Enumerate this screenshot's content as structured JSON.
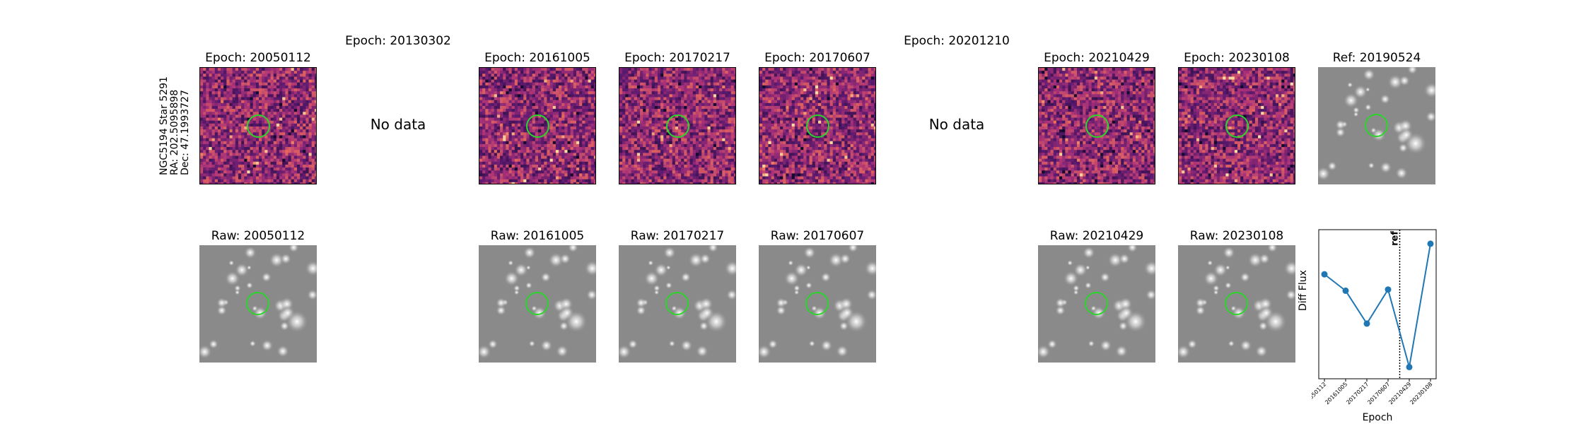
{
  "star_info": {
    "name": "NGC5194 Star 5291",
    "ra": "RA: 202.5095898",
    "dec": "Dec: 47.1993727"
  },
  "epochs_row": [
    {
      "title": "Epoch: 20050112",
      "has_data": true
    },
    {
      "title": "Epoch: 20130302",
      "has_data": false,
      "no_data": "No data"
    },
    {
      "title": "Epoch: 20161005",
      "has_data": true
    },
    {
      "title": "Epoch: 20170217",
      "has_data": true
    },
    {
      "title": "Epoch: 20170607",
      "has_data": true
    },
    {
      "title": "Epoch: 20201210",
      "has_data": false,
      "no_data": "No data"
    },
    {
      "title": "Epoch: 20210429",
      "has_data": true
    },
    {
      "title": "Epoch: 20230108",
      "has_data": true
    }
  ],
  "ref_title": "Ref: 20190524",
  "raw_row": [
    {
      "title": "Raw: 20050112"
    },
    {
      "title": "Raw: 20161005"
    },
    {
      "title": "Raw: 20170217"
    },
    {
      "title": "Raw: 20170607"
    },
    {
      "title": "Raw: 20210429"
    },
    {
      "title": "Raw: 20230108"
    }
  ],
  "chart_data": {
    "type": "line",
    "x": [
      "20050112",
      "20161005",
      "20170217",
      "20170607",
      "20210429",
      "20230108"
    ],
    "values": [
      0.62,
      0.48,
      0.2,
      0.49,
      -0.17,
      0.88
    ],
    "ylim": [
      -0.27,
      1.0
    ],
    "xlabel": "Epoch",
    "ylabel": "Diff Flux",
    "reference_line": {
      "position_between": [
        "20170607",
        "20210429"
      ],
      "label": "ref"
    },
    "color": "#1f77b4"
  }
}
